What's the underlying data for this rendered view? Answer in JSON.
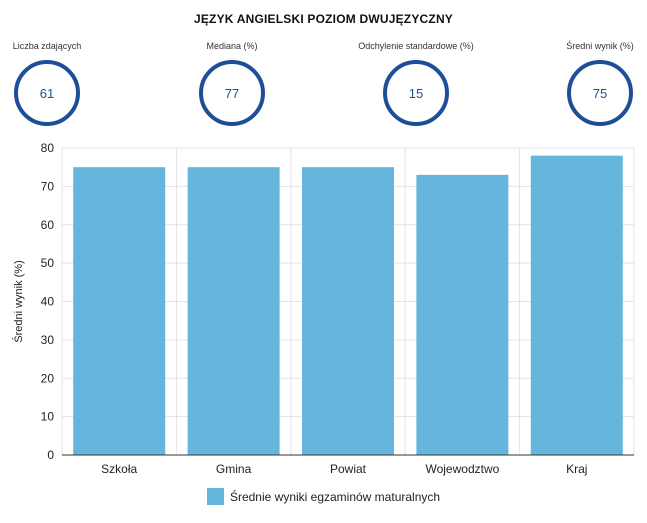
{
  "header": {
    "title": "JĘZYK ANGIELSKI POZIOM DWUJĘZYCZNY"
  },
  "kpis": [
    {
      "label": "Liczba zdających",
      "value": "61"
    },
    {
      "label": "Mediana (%)",
      "value": "77"
    },
    {
      "label": "Odchylenie standardowe (%)",
      "value": "15"
    },
    {
      "label": "Średni wynik (%)",
      "value": "75"
    }
  ],
  "colors": {
    "bar": "#66b5dc",
    "ring": "#1f4e98",
    "grid": "#e3e3e3"
  },
  "chart_data": {
    "type": "bar",
    "categories": [
      "Szkoła",
      "Gmina",
      "Powiat",
      "Wojewodztwo",
      "Kraj"
    ],
    "series": [
      {
        "name": "Średnie wyniki egzaminów maturalnych",
        "values": [
          75,
          75,
          75,
          73,
          78
        ]
      }
    ],
    "ylabel": "Średni wynik (%)",
    "xlabel": "",
    "ylim": [
      0,
      80
    ],
    "yticks": [
      0,
      10,
      20,
      30,
      40,
      50,
      60,
      70,
      80
    ],
    "grid": true,
    "legend": "bottom"
  }
}
